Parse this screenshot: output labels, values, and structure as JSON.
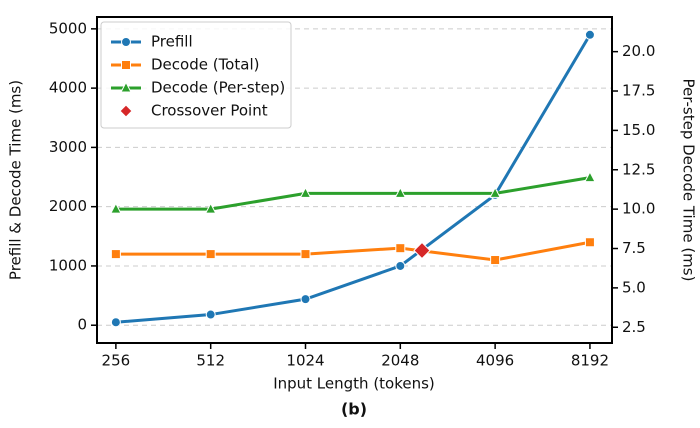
{
  "chart_data": {
    "type": "line",
    "caption": "(b)",
    "x_label": "Input Length (tokens)",
    "y_label": "Prefill & Decode Time (ms)",
    "y2_label": "Per-step Decode Time (ms)",
    "x": [
      256,
      512,
      1024,
      2048,
      4096,
      8192
    ],
    "xscale": "log2",
    "xlim": [
      223,
      9626
    ],
    "xticks": [
      256,
      512,
      1024,
      2048,
      4096,
      8192
    ],
    "ylim": [
      -300,
      5200
    ],
    "yticks": [
      0,
      1000,
      2000,
      3000,
      4000,
      5000
    ],
    "y2lim": [
      1.5,
      22.2
    ],
    "y2ticks": [
      2.5,
      {
        "value": 5,
        "label": "5.0"
      },
      7.5,
      {
        "value": 10,
        "label": "10.0"
      },
      12.5,
      {
        "value": 15,
        "label": "15.0"
      },
      17.5,
      {
        "value": 20,
        "label": "20.0"
      }
    ],
    "grid": true,
    "legend": "upper left",
    "series": [
      {
        "name": "Prefill",
        "color": "#1f77b4",
        "marker": "circle",
        "values": [
          50,
          180,
          440,
          1000,
          2200,
          4900
        ]
      },
      {
        "name": "Decode (Total)",
        "color": "#ff7f0e",
        "marker": "square",
        "values": [
          1200,
          1200,
          1200,
          1300,
          1100,
          1400
        ]
      },
      {
        "name": "Decode (Per-step)",
        "color": "#2ca02c",
        "marker": "triangle",
        "axis": "y2",
        "values": [
          10,
          10,
          11,
          11,
          11,
          12
        ]
      },
      {
        "name": "Crossover Point",
        "color": "#d62728",
        "marker": "diamond",
        "x": [
          2400
        ],
        "values": [
          1260
        ],
        "line": false
      }
    ]
  }
}
